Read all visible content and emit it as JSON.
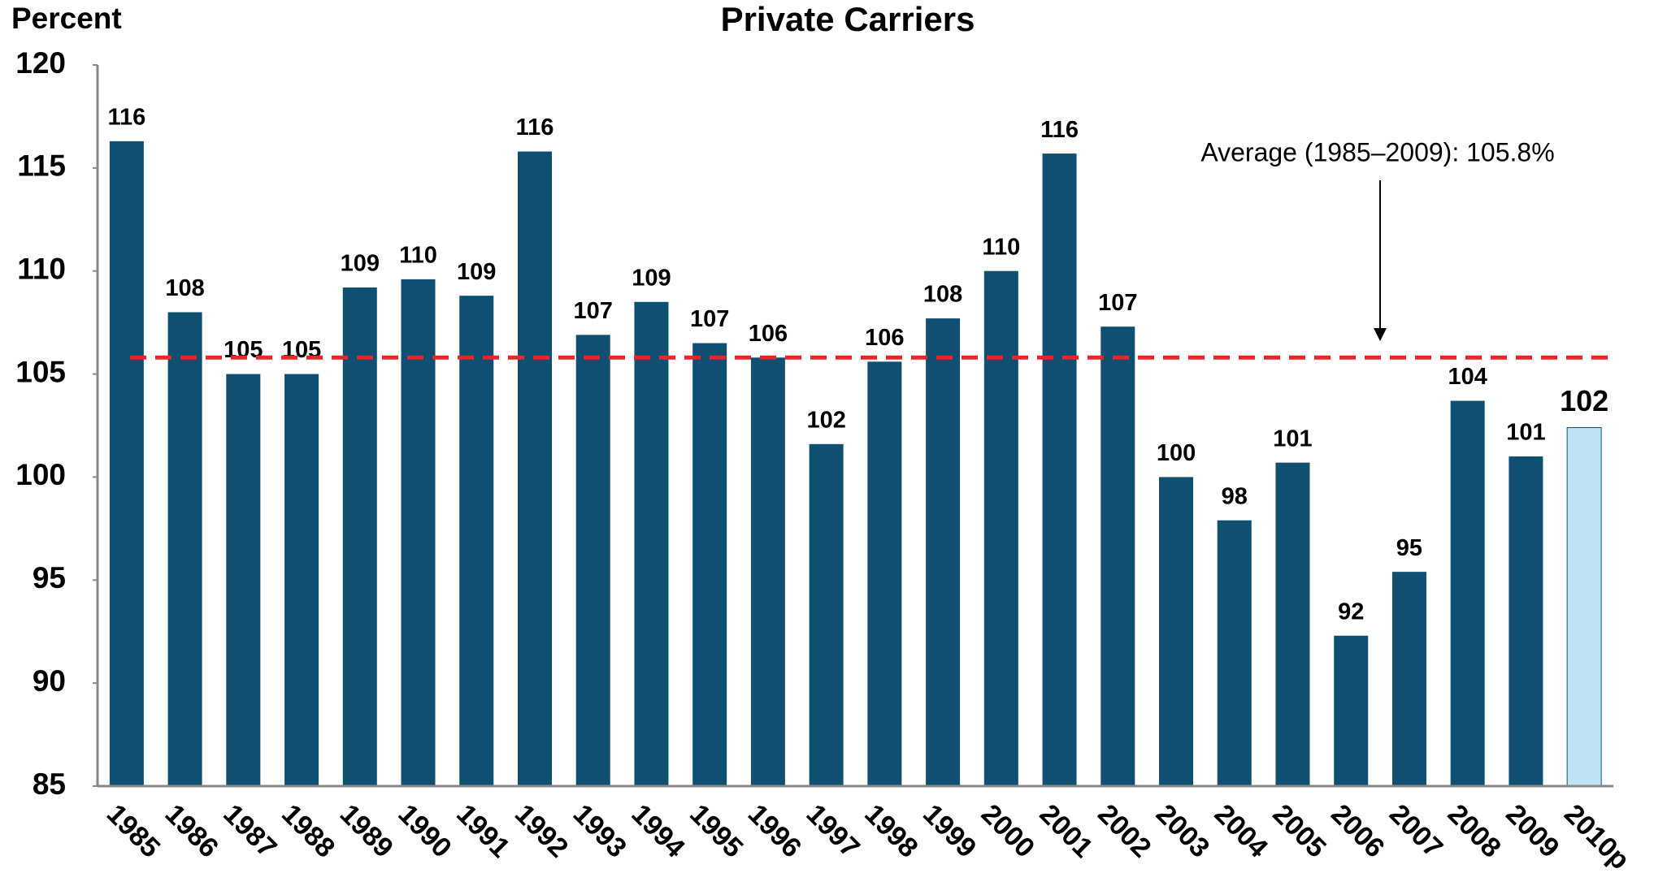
{
  "chart_data": {
    "type": "bar",
    "title": "Private Carriers",
    "y_label": "Percent",
    "categories": [
      "1985",
      "1986",
      "1987",
      "1988",
      "1989",
      "1990",
      "1991",
      "1992",
      "1993",
      "1994",
      "1995",
      "1996",
      "1997",
      "1998",
      "1999",
      "2000",
      "2001",
      "2002",
      "2003",
      "2004",
      "2005",
      "2006",
      "2007",
      "2008",
      "2009",
      "2010p"
    ],
    "values": [
      116.3,
      108.0,
      105.0,
      105.0,
      109.2,
      109.6,
      108.8,
      115.8,
      106.9,
      108.5,
      106.5,
      105.8,
      101.6,
      105.6,
      107.7,
      110.0,
      115.7,
      107.3,
      100.0,
      97.9,
      100.7,
      92.3,
      95.4,
      103.7,
      101.0,
      102.4
    ],
    "value_labels": [
      "116",
      "108",
      "105",
      "105",
      "109",
      "110",
      "109",
      "116",
      "107",
      "109",
      "107",
      "106",
      "102",
      "106",
      "108",
      "110",
      "116",
      "107",
      "100",
      "98",
      "101",
      "92",
      "95",
      "104",
      "101",
      "102"
    ],
    "colors": [
      "#0f4f72",
      "#0f4f72",
      "#0f4f72",
      "#0f4f72",
      "#0f4f72",
      "#0f4f72",
      "#0f4f72",
      "#0f4f72",
      "#0f4f72",
      "#0f4f72",
      "#0f4f72",
      "#0f4f72",
      "#0f4f72",
      "#0f4f72",
      "#0f4f72",
      "#0f4f72",
      "#0f4f72",
      "#0f4f72",
      "#0f4f72",
      "#0f4f72",
      "#0f4f72",
      "#0f4f72",
      "#0f4f72",
      "#0f4f72",
      "#0f4f72",
      "#bfe3f5"
    ],
    "ylim": [
      85,
      120
    ],
    "yticks": [
      85,
      90,
      95,
      100,
      105,
      110,
      115,
      120
    ],
    "grid": false,
    "reference_line": {
      "value": 105.8,
      "color": "#e8262a",
      "annotation": "Average (1985–2009): 105.8%"
    }
  }
}
